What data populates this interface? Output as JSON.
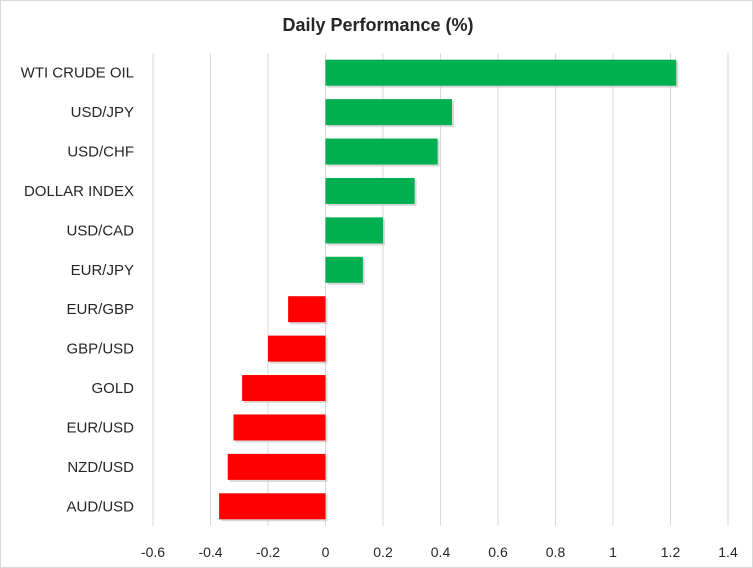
{
  "chart_data": {
    "type": "bar",
    "orientation": "horizontal",
    "title": "Daily Performance (%)",
    "xlabel": "",
    "ylabel": "",
    "categories": [
      "WTI CRUDE OIL",
      "USD/JPY",
      "USD/CHF",
      "DOLLAR INDEX",
      "USD/CAD",
      "EUR/JPY",
      "EUR/GBP",
      "GBP/USD",
      "GOLD",
      "EUR/USD",
      "NZD/USD",
      "AUD/USD"
    ],
    "values": [
      1.22,
      0.44,
      0.39,
      0.31,
      0.2,
      0.13,
      -0.13,
      -0.2,
      -0.29,
      -0.32,
      -0.34,
      -0.37
    ],
    "xlim": [
      -0.6,
      1.4
    ],
    "xticks": [
      -0.6,
      -0.4,
      -0.2,
      0,
      0.2,
      0.4,
      0.6,
      0.8,
      1.0,
      1.2,
      1.4
    ],
    "xtick_labels": [
      "-0.6",
      "-0.4",
      "-0.2",
      "0",
      "0.2",
      "0.4",
      "0.6",
      "0.8",
      "1",
      "1.2",
      "1.4"
    ],
    "grid": true,
    "legend": "none",
    "colors": {
      "positive": "#00b050",
      "negative": "#ff0000",
      "grid": "#d9d9d9",
      "text": "#262626"
    }
  }
}
